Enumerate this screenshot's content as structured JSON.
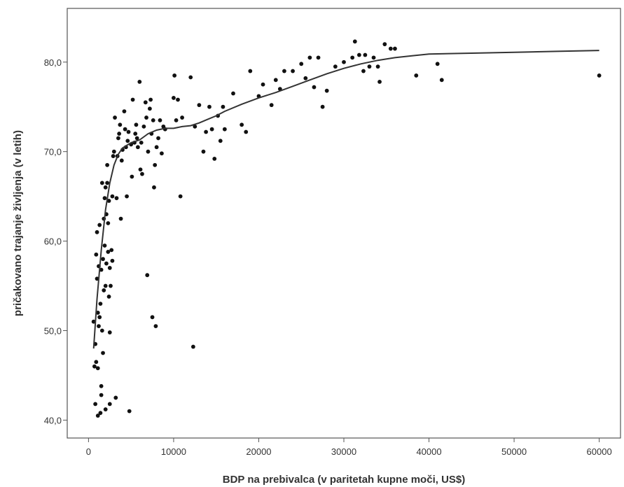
{
  "chart_data": {
    "type": "scatter",
    "xlabel": "BDP na prebivalca (v paritetah kupne moči, US$)",
    "ylabel": "pričakovano trajanje življenja (v letih)",
    "xlim": [
      -2500,
      62500
    ],
    "ylim": [
      38,
      86
    ],
    "x_ticks": [
      0,
      10000,
      20000,
      30000,
      40000,
      50000,
      60000
    ],
    "x_tick_labels": [
      "0",
      "10000",
      "20000",
      "30000",
      "40000",
      "50000",
      "60000"
    ],
    "y_ticks": [
      40,
      50,
      60,
      70,
      80
    ],
    "y_tick_labels": [
      "40,0",
      "50,0",
      "60,0",
      "70,0",
      "80,0"
    ],
    "grid": false,
    "legend": "none",
    "colors": {
      "points": "#111111",
      "line": "#333333",
      "axis": "#555555"
    },
    "points": [
      [
        600,
        51.0
      ],
      [
        700,
        46.0
      ],
      [
        800,
        48.5
      ],
      [
        800,
        41.8
      ],
      [
        900,
        46.5
      ],
      [
        900,
        58.5
      ],
      [
        1000,
        55.8
      ],
      [
        1000,
        61.0
      ],
      [
        1100,
        40.5
      ],
      [
        1100,
        45.8
      ],
      [
        1100,
        52.0
      ],
      [
        1200,
        50.5
      ],
      [
        1200,
        57.2
      ],
      [
        1300,
        51.5
      ],
      [
        1300,
        61.8
      ],
      [
        1400,
        53.0
      ],
      [
        1400,
        40.8
      ],
      [
        1500,
        43.8
      ],
      [
        1500,
        42.8
      ],
      [
        1500,
        56.8
      ],
      [
        1600,
        66.5
      ],
      [
        1600,
        50.0
      ],
      [
        1700,
        47.5
      ],
      [
        1700,
        58.0
      ],
      [
        1800,
        54.5
      ],
      [
        1800,
        62.5
      ],
      [
        1900,
        59.5
      ],
      [
        1900,
        64.8
      ],
      [
        2000,
        66.0
      ],
      [
        2000,
        55.0
      ],
      [
        2000,
        41.2
      ],
      [
        2100,
        63.0
      ],
      [
        2100,
        57.5
      ],
      [
        2200,
        68.5
      ],
      [
        2200,
        66.5
      ],
      [
        2300,
        62.0
      ],
      [
        2300,
        58.8
      ],
      [
        2400,
        64.5
      ],
      [
        2400,
        53.8
      ],
      [
        2500,
        57.0
      ],
      [
        2500,
        49.8
      ],
      [
        2500,
        41.8
      ],
      [
        2600,
        55.0
      ],
      [
        2700,
        59.0
      ],
      [
        2800,
        65.0
      ],
      [
        2800,
        57.8
      ],
      [
        2900,
        69.5
      ],
      [
        3000,
        70.0
      ],
      [
        3100,
        73.8
      ],
      [
        3200,
        42.5
      ],
      [
        3300,
        64.8
      ],
      [
        3400,
        69.5
      ],
      [
        3500,
        71.5
      ],
      [
        3600,
        72.0
      ],
      [
        3700,
        73.0
      ],
      [
        3800,
        62.5
      ],
      [
        3900,
        69.0
      ],
      [
        4000,
        70.2
      ],
      [
        4200,
        74.5
      ],
      [
        4300,
        72.5
      ],
      [
        4400,
        70.5
      ],
      [
        4500,
        65.0
      ],
      [
        4600,
        71.2
      ],
      [
        4700,
        72.2
      ],
      [
        4800,
        41.0
      ],
      [
        5000,
        70.8
      ],
      [
        5100,
        67.2
      ],
      [
        5200,
        75.8
      ],
      [
        5400,
        71.0
      ],
      [
        5500,
        72.0
      ],
      [
        5600,
        73.0
      ],
      [
        5700,
        71.5
      ],
      [
        5800,
        70.5
      ],
      [
        6000,
        77.8
      ],
      [
        6100,
        68.0
      ],
      [
        6200,
        71.0
      ],
      [
        6300,
        67.5
      ],
      [
        6500,
        72.8
      ],
      [
        6700,
        75.5
      ],
      [
        6800,
        73.8
      ],
      [
        6900,
        56.2
      ],
      [
        7000,
        70.0
      ],
      [
        7200,
        74.8
      ],
      [
        7300,
        75.8
      ],
      [
        7400,
        72.0
      ],
      [
        7500,
        51.5
      ],
      [
        7600,
        73.5
      ],
      [
        7700,
        66.0
      ],
      [
        7800,
        68.5
      ],
      [
        7900,
        50.5
      ],
      [
        8000,
        70.5
      ],
      [
        8200,
        71.5
      ],
      [
        8400,
        73.5
      ],
      [
        8600,
        69.8
      ],
      [
        8800,
        72.8
      ],
      [
        9000,
        72.5
      ],
      [
        10000,
        76.0
      ],
      [
        10100,
        78.5
      ],
      [
        10300,
        73.5
      ],
      [
        10500,
        75.8
      ],
      [
        10800,
        65.0
      ],
      [
        11000,
        73.8
      ],
      [
        12000,
        78.3
      ],
      [
        12300,
        48.2
      ],
      [
        12500,
        72.8
      ],
      [
        13000,
        75.2
      ],
      [
        13500,
        70.0
      ],
      [
        13800,
        72.2
      ],
      [
        14200,
        75.0
      ],
      [
        14500,
        72.5
      ],
      [
        14800,
        69.2
      ],
      [
        15200,
        74.0
      ],
      [
        15500,
        71.2
      ],
      [
        15800,
        75.0
      ],
      [
        16000,
        72.5
      ],
      [
        17000,
        76.5
      ],
      [
        18000,
        73.0
      ],
      [
        18500,
        72.2
      ],
      [
        19000,
        79.0
      ],
      [
        20000,
        76.2
      ],
      [
        20500,
        77.5
      ],
      [
        21500,
        75.2
      ],
      [
        22000,
        78.0
      ],
      [
        22500,
        77.0
      ],
      [
        23000,
        79.0
      ],
      [
        24000,
        79.0
      ],
      [
        25000,
        79.8
      ],
      [
        25500,
        78.2
      ],
      [
        26000,
        80.5
      ],
      [
        26500,
        77.2
      ],
      [
        27000,
        80.5
      ],
      [
        27500,
        75.0
      ],
      [
        28000,
        76.8
      ],
      [
        29000,
        79.5
      ],
      [
        30000,
        80.0
      ],
      [
        31000,
        80.5
      ],
      [
        31300,
        82.3
      ],
      [
        31800,
        80.8
      ],
      [
        32300,
        79.0
      ],
      [
        32500,
        80.8
      ],
      [
        33000,
        79.5
      ],
      [
        33500,
        80.5
      ],
      [
        34000,
        79.5
      ],
      [
        34200,
        77.8
      ],
      [
        34800,
        82.0
      ],
      [
        35500,
        81.5
      ],
      [
        36000,
        81.5
      ],
      [
        38500,
        78.5
      ],
      [
        41000,
        79.8
      ],
      [
        41500,
        78.0
      ],
      [
        60000,
        78.5
      ]
    ],
    "fit_line": [
      [
        600,
        48.0
      ],
      [
        1000,
        53.5
      ],
      [
        1500,
        59.0
      ],
      [
        2000,
        63.5
      ],
      [
        2500,
        66.5
      ],
      [
        3000,
        68.5
      ],
      [
        3500,
        69.7
      ],
      [
        4000,
        70.4
      ],
      [
        5000,
        71.0
      ],
      [
        6000,
        71.3
      ],
      [
        7000,
        72.0
      ],
      [
        8000,
        72.4
      ],
      [
        9000,
        72.6
      ],
      [
        10000,
        72.6
      ],
      [
        11000,
        72.8
      ],
      [
        12000,
        72.9
      ],
      [
        13000,
        73.2
      ],
      [
        14000,
        73.6
      ],
      [
        15000,
        74.0
      ],
      [
        16000,
        74.5
      ],
      [
        18000,
        75.3
      ],
      [
        20000,
        76.0
      ],
      [
        22000,
        76.6
      ],
      [
        24000,
        77.3
      ],
      [
        26000,
        78.0
      ],
      [
        28000,
        78.7
      ],
      [
        30000,
        79.3
      ],
      [
        32000,
        79.8
      ],
      [
        34000,
        80.2
      ],
      [
        36000,
        80.5
      ],
      [
        38000,
        80.7
      ],
      [
        40000,
        80.9
      ],
      [
        45000,
        81.0
      ],
      [
        50000,
        81.1
      ],
      [
        55000,
        81.2
      ],
      [
        60000,
        81.3
      ]
    ]
  }
}
